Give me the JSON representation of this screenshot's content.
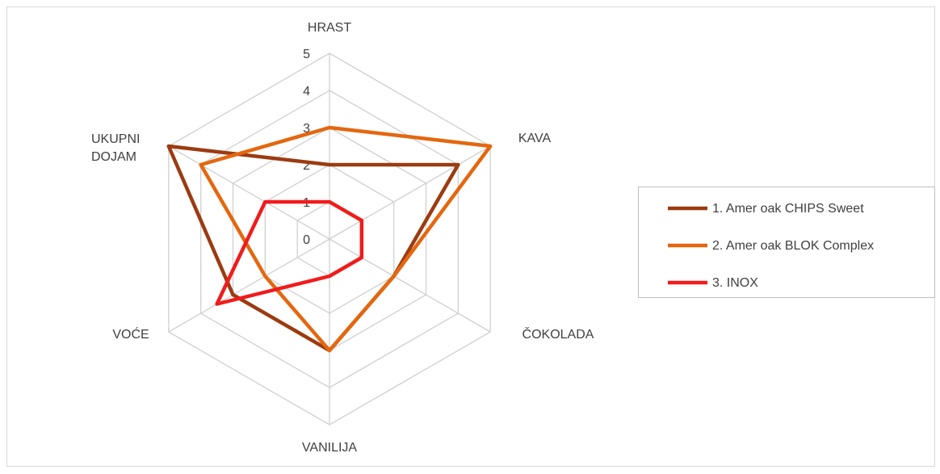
{
  "chart_data": {
    "type": "radar",
    "categories": [
      "HRAST",
      "KAVA",
      "ČOKOLADA",
      "VANILIJA",
      "VOĆE",
      "UKUPNI DOJAM"
    ],
    "series": [
      {
        "name": "1. Amer oak CHIPS Sweet",
        "color": "#9c3b10",
        "values": [
          2,
          4,
          2,
          3,
          3,
          5
        ]
      },
      {
        "name": "2. Amer oak BLOK Complex",
        "color": "#e4670f",
        "values": [
          3,
          5,
          2,
          3,
          2,
          4
        ]
      },
      {
        "name": "3. INOX",
        "color": "#f01c1c",
        "values": [
          1,
          1,
          1,
          1,
          3.5,
          2
        ]
      }
    ],
    "ylim": [
      0,
      5
    ],
    "yticks": [
      0,
      1,
      2,
      3,
      4,
      5
    ],
    "grid": true,
    "legend": "right"
  }
}
